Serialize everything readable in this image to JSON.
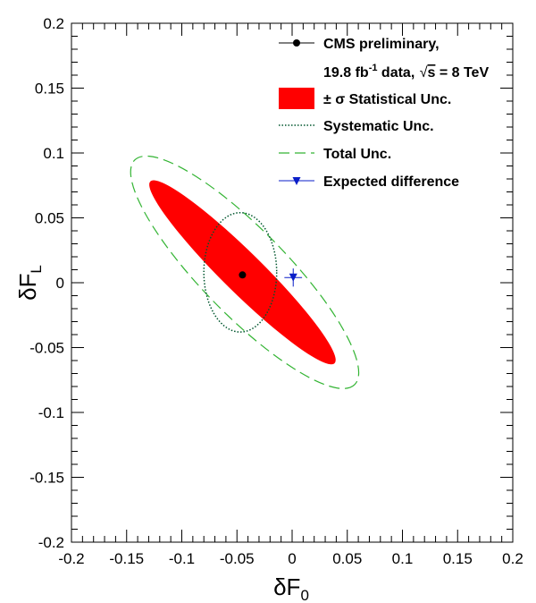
{
  "chart_data": {
    "type": "scatter",
    "x_axis": {
      "label_main": "δF",
      "label_sub": "0",
      "range": [
        -0.2,
        0.2
      ],
      "ticks": [
        -0.2,
        -0.15,
        -0.1,
        -0.05,
        0,
        0.05,
        0.1,
        0.15,
        0.2
      ],
      "tick_labels": [
        "-0.2",
        "-0.15",
        "-0.1",
        "-0.05",
        "0",
        "0.05",
        "0.1",
        "0.15",
        "0.2"
      ]
    },
    "y_axis": {
      "label_main": "δF",
      "label_sub": "L",
      "range": [
        -0.2,
        0.2
      ],
      "ticks": [
        -0.2,
        -0.15,
        -0.1,
        -0.05,
        0,
        0.05,
        0.1,
        0.15,
        0.2
      ],
      "tick_labels": [
        "-0.2",
        "-0.15",
        "-0.1",
        "-0.05",
        "0",
        "0.05",
        "0.1",
        "0.15",
        "0.2"
      ]
    },
    "grid": false,
    "legend": {
      "placement": "top-right",
      "measured_line1": "CMS preliminary,",
      "measured_line2_a": "19.8 fb",
      "measured_line2_sup": "-1",
      "measured_line2_b": " data, ",
      "measured_line2_c": "s",
      "measured_line2_d": " = 8 TeV",
      "stat_label": "± σ Statistical Unc.",
      "syst_label": "Systematic Unc.",
      "total_label": "Total Unc.",
      "expected_label": "Expected difference"
    },
    "measured_point": {
      "x": -0.045,
      "y": 0.006
    },
    "expected_point": {
      "x": 0.001,
      "y": 0.004,
      "x_err": 0.008,
      "y_err": 0.007
    },
    "stat_ellipse": {
      "center": [
        -0.045,
        0.008
      ],
      "semi_major": 0.109,
      "semi_minor": 0.0165,
      "angle_deg": -40
    },
    "syst_ellipse": {
      "center": [
        -0.047,
        0.008
      ],
      "semi_x": 0.033,
      "semi_y": 0.046,
      "angle_deg": 0
    },
    "total_ellipse": {
      "center": [
        -0.043,
        0.008
      ],
      "semi_major": 0.132,
      "semi_minor": 0.035,
      "angle_deg": -41
    },
    "colors": {
      "stat": "#ff0000",
      "syst": "#00562e",
      "total": "#33b433",
      "expected": "#0a1ec8",
      "measured": "#000000"
    }
  }
}
